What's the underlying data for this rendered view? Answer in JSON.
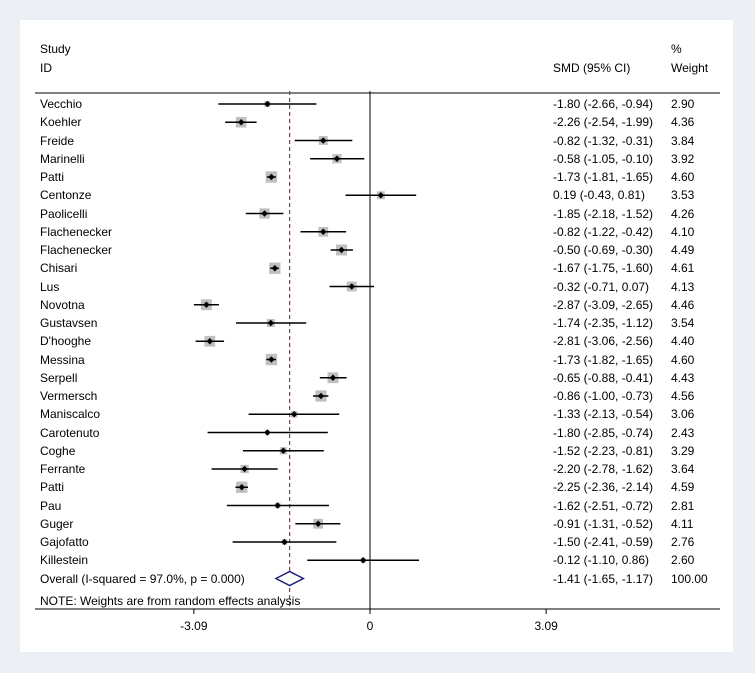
{
  "chart_data": {
    "type": "forest",
    "header": {
      "study_label": "Study",
      "id_label": "ID",
      "smd_label": "SMD (95% CI)",
      "weight_pct_label": "%",
      "weight_label": "Weight"
    },
    "studies": [
      {
        "name": "Vecchio",
        "smd": -1.8,
        "lo": -2.66,
        "hi": -0.94,
        "ci_text": "-1.80 (-2.66, -0.94)",
        "weight": 2.9,
        "weight_text": "2.90"
      },
      {
        "name": "Koehler",
        "smd": -2.26,
        "lo": -2.54,
        "hi": -1.99,
        "ci_text": "-2.26 (-2.54, -1.99)",
        "weight": 4.36,
        "weight_text": "4.36"
      },
      {
        "name": "Freide",
        "smd": -0.82,
        "lo": -1.32,
        "hi": -0.31,
        "ci_text": "-0.82 (-1.32, -0.31)",
        "weight": 3.84,
        "weight_text": "3.84"
      },
      {
        "name": "Marinelli",
        "smd": -0.58,
        "lo": -1.05,
        "hi": -0.1,
        "ci_text": "-0.58 (-1.05, -0.10)",
        "weight": 3.92,
        "weight_text": "3.92"
      },
      {
        "name": "Patti",
        "smd": -1.73,
        "lo": -1.81,
        "hi": -1.65,
        "ci_text": "-1.73 (-1.81, -1.65)",
        "weight": 4.6,
        "weight_text": "4.60"
      },
      {
        "name": "Centonze",
        "smd": 0.19,
        "lo": -0.43,
        "hi": 0.81,
        "ci_text": "0.19 (-0.43, 0.81)",
        "weight": 3.53,
        "weight_text": "3.53"
      },
      {
        "name": "Paolicelli",
        "smd": -1.85,
        "lo": -2.18,
        "hi": -1.52,
        "ci_text": "-1.85 (-2.18, -1.52)",
        "weight": 4.26,
        "weight_text": "4.26"
      },
      {
        "name": "Flachenecker",
        "smd": -0.82,
        "lo": -1.22,
        "hi": -0.42,
        "ci_text": "-0.82 (-1.22, -0.42)",
        "weight": 4.1,
        "weight_text": "4.10"
      },
      {
        "name": "Flachenecker",
        "smd": -0.5,
        "lo": -0.69,
        "hi": -0.3,
        "ci_text": "-0.50 (-0.69, -0.30)",
        "weight": 4.49,
        "weight_text": "4.49"
      },
      {
        "name": "Chisari",
        "smd": -1.67,
        "lo": -1.75,
        "hi": -1.6,
        "ci_text": "-1.67 (-1.75, -1.60)",
        "weight": 4.61,
        "weight_text": "4.61"
      },
      {
        "name": "Lus",
        "smd": -0.32,
        "lo": -0.71,
        "hi": 0.07,
        "ci_text": "-0.32 (-0.71, 0.07)",
        "weight": 4.13,
        "weight_text": "4.13"
      },
      {
        "name": "Novotna",
        "smd": -2.87,
        "lo": -3.09,
        "hi": -2.65,
        "ci_text": "-2.87 (-3.09, -2.65)",
        "weight": 4.46,
        "weight_text": "4.46"
      },
      {
        "name": "Gustavsen",
        "smd": -1.74,
        "lo": -2.35,
        "hi": -1.12,
        "ci_text": "-1.74 (-2.35, -1.12)",
        "weight": 3.54,
        "weight_text": "3.54"
      },
      {
        "name": "D'hooghe",
        "smd": -2.81,
        "lo": -3.06,
        "hi": -2.56,
        "ci_text": "-2.81 (-3.06, -2.56)",
        "weight": 4.4,
        "weight_text": "4.40"
      },
      {
        "name": "Messina",
        "smd": -1.73,
        "lo": -1.82,
        "hi": -1.65,
        "ci_text": "-1.73 (-1.82, -1.65)",
        "weight": 4.6,
        "weight_text": "4.60"
      },
      {
        "name": "Serpell",
        "smd": -0.65,
        "lo": -0.88,
        "hi": -0.41,
        "ci_text": "-0.65 (-0.88, -0.41)",
        "weight": 4.43,
        "weight_text": "4.43"
      },
      {
        "name": "Vermersch",
        "smd": -0.86,
        "lo": -1.0,
        "hi": -0.73,
        "ci_text": "-0.86 (-1.00, -0.73)",
        "weight": 4.56,
        "weight_text": "4.56"
      },
      {
        "name": "Maniscalco",
        "smd": -1.33,
        "lo": -2.13,
        "hi": -0.54,
        "ci_text": "-1.33 (-2.13, -0.54)",
        "weight": 3.06,
        "weight_text": "3.06"
      },
      {
        "name": "Carotenuto",
        "smd": -1.8,
        "lo": -2.85,
        "hi": -0.74,
        "ci_text": "-1.80 (-2.85, -0.74)",
        "weight": 2.43,
        "weight_text": "2.43"
      },
      {
        "name": "Coghe",
        "smd": -1.52,
        "lo": -2.23,
        "hi": -0.81,
        "ci_text": "-1.52 (-2.23, -0.81)",
        "weight": 3.29,
        "weight_text": "3.29"
      },
      {
        "name": "Ferrante",
        "smd": -2.2,
        "lo": -2.78,
        "hi": -1.62,
        "ci_text": "-2.20 (-2.78, -1.62)",
        "weight": 3.64,
        "weight_text": "3.64"
      },
      {
        "name": "Patti",
        "smd": -2.25,
        "lo": -2.36,
        "hi": -2.14,
        "ci_text": "-2.25 (-2.36, -2.14)",
        "weight": 4.59,
        "weight_text": "4.59"
      },
      {
        "name": "Pau",
        "smd": -1.62,
        "lo": -2.51,
        "hi": -0.72,
        "ci_text": "-1.62 (-2.51, -0.72)",
        "weight": 2.81,
        "weight_text": "2.81"
      },
      {
        "name": "Guger",
        "smd": -0.91,
        "lo": -1.31,
        "hi": -0.52,
        "ci_text": "-0.91 (-1.31, -0.52)",
        "weight": 4.11,
        "weight_text": "4.11"
      },
      {
        "name": "Gajofatto",
        "smd": -1.5,
        "lo": -2.41,
        "hi": -0.59,
        "ci_text": "-1.50 (-2.41, -0.59)",
        "weight": 2.76,
        "weight_text": "2.76"
      },
      {
        "name": "Killestein",
        "smd": -0.12,
        "lo": -1.1,
        "hi": 0.86,
        "ci_text": "-0.12 (-1.10, 0.86)",
        "weight": 2.6,
        "weight_text": "2.60"
      }
    ],
    "overall": {
      "label": "Overall  (I-squared = 97.0%, p = 0.000)",
      "smd": -1.41,
      "lo": -1.65,
      "hi": -1.17,
      "ci_text": "-1.41 (-1.65, -1.17)",
      "weight_text": "100.00"
    },
    "note": "NOTE: Weights are from random effects analysis",
    "x_ticks": [
      {
        "value": -3.09,
        "label": "-3.09"
      },
      {
        "value": 0,
        "label": "0"
      },
      {
        "value": 3.09,
        "label": "3.09"
      }
    ],
    "xlim": [
      -3.98,
      3.98
    ],
    "colors": {
      "box": "#c0c0c0",
      "ci_line": "#000000",
      "point": "#000000",
      "diamond": "#1f1f7a",
      "overall_line": "#a8323c",
      "background": "#ecf0f4",
      "panel": "#ffffff"
    }
  }
}
